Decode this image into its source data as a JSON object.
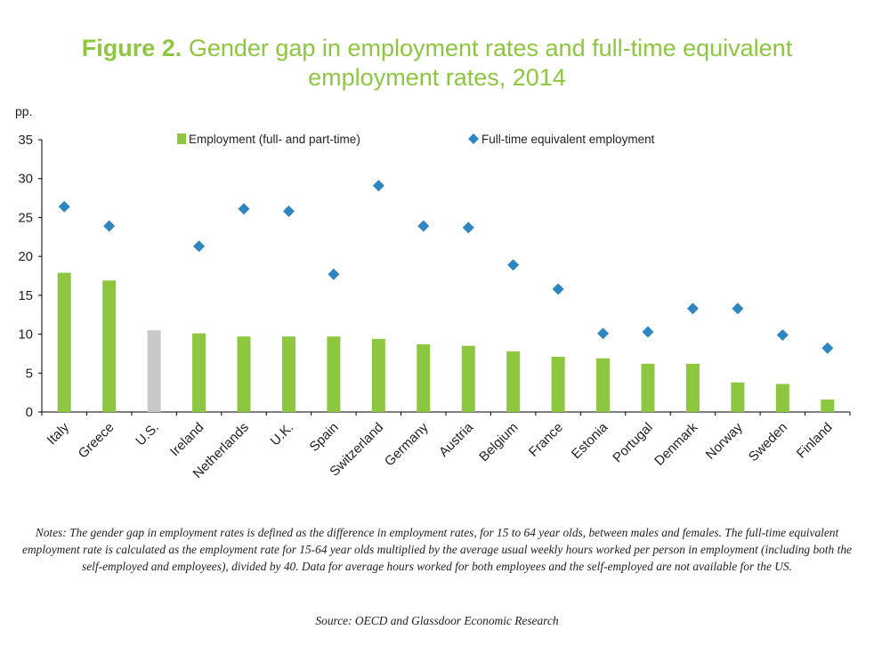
{
  "figure": {
    "label": "Figure 2.",
    "title_line1": "Gender gap in employment rates and full-time equivalent",
    "title_line2": "employment rates, 2014"
  },
  "notes": "Notes: The gender gap in employment rates is defined as the difference in employment rates, for 15 to 64 year olds, between males and females. The full-time equivalent employment rate is calculated as the employment rate for 15-64 year olds multiplied by the average usual weekly hours worked per person in employment (including both the self-employed and employees), divided by 40. Data for average hours worked for both employees and the self-employed are not available for the US.",
  "source": "Source: OECD and Glassdoor Economic Research",
  "colors": {
    "bar": "#8dc63f",
    "bar_highlight": "#c8c8c8",
    "diamond": "#2e86c1",
    "title": "#8dc63f",
    "axis": "#000000"
  },
  "chart_data": {
    "type": "bar",
    "ylabel": "pp.",
    "ylim": [
      0,
      35
    ],
    "yticks": [
      0,
      5,
      10,
      15,
      20,
      25,
      30,
      35
    ],
    "grid": false,
    "legend_position": "top",
    "categories": [
      "Italy",
      "Greece",
      "U.S.",
      "Ireland",
      "Netherlands",
      "U.K.",
      "Spain",
      "Switzerland",
      "Germany",
      "Austria",
      "Belgium",
      "France",
      "Estonia",
      "Portugal",
      "Denmark",
      "Norway",
      "Sweden",
      "Finland"
    ],
    "highlight_category": "U.S.",
    "series": [
      {
        "name": "Employment (full- and part-time)",
        "type": "bar",
        "values": [
          17.9,
          16.9,
          10.5,
          10.1,
          9.7,
          9.7,
          9.7,
          9.4,
          8.7,
          8.5,
          7.8,
          7.1,
          6.9,
          6.2,
          6.2,
          3.8,
          3.6,
          1.6
        ]
      },
      {
        "name": "Full-time equivalent employment",
        "type": "scatter",
        "marker": "diamond",
        "values": [
          26.4,
          23.9,
          null,
          21.3,
          26.1,
          25.8,
          17.7,
          29.1,
          23.9,
          23.7,
          18.9,
          15.8,
          10.1,
          10.3,
          13.3,
          13.3,
          9.9,
          8.2
        ]
      }
    ]
  }
}
